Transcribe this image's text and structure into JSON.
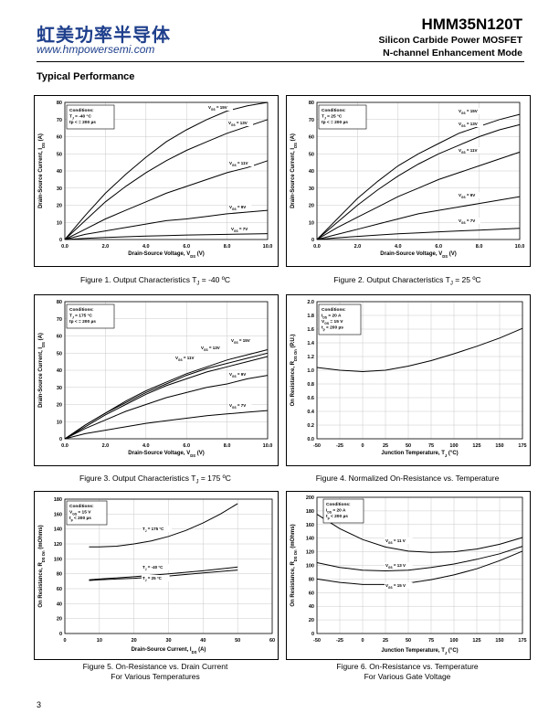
{
  "header": {
    "company_cn": "虹美功率半导体",
    "website": "www.hmpowersemi.com",
    "part_number": "HMM35N120T",
    "subtitle1": "Silicon Carbide Power MOSFET",
    "subtitle2": "N-channel Enhancement Mode"
  },
  "section_title": "Typical Performance",
  "page_number": "3",
  "captions": [
    [
      "Figure 1. Output Characteristics T",
      "J",
      " = -40 ºC"
    ],
    [
      "Figure 2. Output Characteristics T",
      "J",
      " = 25 ºC"
    ],
    [
      "Figure 3. Output Characteristics T",
      "J",
      " = 175 ºC"
    ],
    [
      "Figure 4. Normalized On-Resistance vs. Temperature"
    ],
    [
      "Figure 5. On-Resistance vs. Drain Current",
      "For Various Temperatures"
    ],
    [
      "Figure 6. On-Resistance vs. Temperature",
      "For Various Gate Voltage"
    ]
  ],
  "chart_data": [
    {
      "type": "line",
      "xlabel": "Drain-Source Voltage, V_DS (V)",
      "ylabel": "Drain-Source Current, I_DS (A)",
      "xlim": [
        0,
        10
      ],
      "ylim": [
        0,
        80
      ],
      "xticks": [
        "0.0",
        "2.0",
        "4.0",
        "6.0",
        "8.0",
        "10.0"
      ],
      "yticks": [
        "0",
        "10",
        "20",
        "30",
        "40",
        "50",
        "60",
        "70",
        "80"
      ],
      "conditions": [
        "Conditions:",
        "T_J = -40 °C",
        "tp < = 200 µs"
      ],
      "grid": true,
      "series": [
        {
          "name": "V_GS = 15V",
          "x": [
            0,
            1,
            2,
            3,
            4,
            5,
            6,
            7,
            8,
            9,
            10
          ],
          "y": [
            0,
            14,
            27,
            38,
            48,
            57,
            64,
            70,
            75,
            78,
            80
          ]
        },
        {
          "name": "V_GS = 13V",
          "x": [
            0,
            1,
            2,
            3,
            4,
            5,
            6,
            7,
            8,
            9,
            10
          ],
          "y": [
            0,
            11,
            22,
            31,
            39,
            46,
            52,
            57,
            62,
            66,
            70
          ]
        },
        {
          "name": "V_GS = 11V",
          "x": [
            0,
            1,
            2,
            3,
            4,
            5,
            6,
            7,
            8,
            9,
            10
          ],
          "y": [
            0,
            6,
            12,
            17,
            22,
            27,
            31,
            35,
            39,
            42,
            46
          ]
        },
        {
          "name": "V_GS = 9V",
          "x": [
            0,
            1,
            2,
            3,
            4,
            5,
            6,
            7,
            8,
            9,
            10
          ],
          "y": [
            0,
            3,
            5,
            7,
            9,
            11,
            12,
            13.5,
            15,
            16,
            17
          ]
        },
        {
          "name": "V_GS = 7V",
          "x": [
            0,
            1,
            2,
            3,
            4,
            5,
            6,
            7,
            8,
            9,
            10
          ],
          "y": [
            0,
            0.7,
            1.2,
            1.6,
            2,
            2.3,
            2.6,
            2.8,
            3,
            3.2,
            3.4
          ]
        }
      ]
    },
    {
      "type": "line",
      "xlabel": "Drain-Source Voltage, V_DS (V)",
      "ylabel": "Drain-Source Current, I_DS (A)",
      "xlim": [
        0,
        10
      ],
      "ylim": [
        0,
        80
      ],
      "xticks": [
        "0.0",
        "2.0",
        "4.0",
        "6.0",
        "8.0",
        "10.0"
      ],
      "yticks": [
        "0",
        "10",
        "20",
        "30",
        "40",
        "50",
        "60",
        "70",
        "80"
      ],
      "conditions": [
        "Conditions:",
        "T_J = 25 °C",
        "tp < = 200 µs"
      ],
      "grid": true,
      "series": [
        {
          "name": "V_GS = 15V",
          "x": [
            0,
            1,
            2,
            3,
            4,
            5,
            6,
            7,
            8,
            9,
            10
          ],
          "y": [
            0,
            12,
            24,
            34,
            43,
            50,
            56,
            62,
            66,
            70,
            73
          ]
        },
        {
          "name": "V_GS = 13V",
          "x": [
            0,
            1,
            2,
            3,
            4,
            5,
            6,
            7,
            8,
            9,
            10
          ],
          "y": [
            0,
            10,
            20,
            29,
            37,
            44,
            50,
            55,
            60,
            64,
            67
          ]
        },
        {
          "name": "V_GS = 11V",
          "x": [
            0,
            1,
            2,
            3,
            4,
            5,
            6,
            7,
            8,
            9,
            10
          ],
          "y": [
            0,
            7,
            13,
            19,
            25,
            30,
            35,
            39,
            43,
            47,
            51
          ]
        },
        {
          "name": "V_GS = 9V",
          "x": [
            0,
            1,
            2,
            3,
            4,
            5,
            6,
            7,
            8,
            9,
            10
          ],
          "y": [
            0,
            3,
            6,
            9,
            12,
            15,
            17,
            19,
            21,
            23,
            25
          ]
        },
        {
          "name": "V_GS = 7V",
          "x": [
            0,
            1,
            2,
            3,
            4,
            5,
            6,
            7,
            8,
            9,
            10
          ],
          "y": [
            0,
            1,
            1.8,
            2.6,
            3.3,
            3.9,
            4.5,
            5,
            5.5,
            6,
            6.5
          ]
        }
      ]
    },
    {
      "type": "line",
      "xlabel": "Drain-Source Voltage, V_DS (V)",
      "ylabel": "Drain-Source Current, I_DS (A)",
      "xlim": [
        0,
        10
      ],
      "ylim": [
        0,
        80
      ],
      "xticks": [
        "0.0",
        "2.0",
        "4.0",
        "6.0",
        "8.0",
        "10.0"
      ],
      "yticks": [
        "0",
        "10",
        "20",
        "30",
        "40",
        "50",
        "60",
        "70",
        "80"
      ],
      "conditions": [
        "Conditions:",
        "T_J = 175 °C",
        "tp < = 200 µs"
      ],
      "grid": true,
      "series": [
        {
          "name": "V_GS = 15V",
          "x": [
            0,
            1,
            2,
            3,
            4,
            5,
            6,
            7,
            8,
            9,
            10
          ],
          "y": [
            0,
            8,
            15,
            22,
            28,
            33,
            38,
            42,
            46,
            49,
            52
          ]
        },
        {
          "name": "V_GS = 13V",
          "x": [
            0,
            1,
            2,
            3,
            4,
            5,
            6,
            7,
            8,
            9,
            10
          ],
          "y": [
            0,
            8,
            15,
            21,
            27,
            32,
            37,
            41,
            44,
            47,
            50
          ]
        },
        {
          "name": "V_GS = 11V",
          "x": [
            0,
            1,
            2,
            3,
            4,
            5,
            6,
            7,
            8,
            9,
            10
          ],
          "y": [
            0,
            7,
            14,
            20,
            26,
            31,
            35,
            39,
            42,
            45,
            48
          ]
        },
        {
          "name": "V_GS = 9V",
          "x": [
            0,
            1,
            2,
            3,
            4,
            5,
            6,
            7,
            8,
            9,
            10
          ],
          "y": [
            0,
            6,
            11,
            16,
            20,
            24,
            27,
            30,
            32,
            35,
            37
          ]
        },
        {
          "name": "V_GS = 7V",
          "x": [
            0,
            1,
            2,
            3,
            4,
            5,
            6,
            7,
            8,
            9,
            10
          ],
          "y": [
            0,
            3,
            5,
            7,
            9,
            10.5,
            12,
            13.5,
            14.5,
            15.5,
            16.5
          ]
        }
      ]
    },
    {
      "type": "line",
      "xlabel": "Junction Temperature, T_J (°C)",
      "ylabel": "On Resistance, R_DS On (P.U.)",
      "xlim": [
        -50,
        175
      ],
      "ylim": [
        0,
        2.0
      ],
      "xticks": [
        "-50",
        "-25",
        "0",
        "25",
        "50",
        "75",
        "100",
        "125",
        "150",
        "175"
      ],
      "yticks": [
        "0.0",
        "0.2",
        "0.4",
        "0.6",
        "0.8",
        "1.0",
        "1.2",
        "1.4",
        "1.6",
        "1.8",
        "2.0"
      ],
      "conditions": [
        "Conditions:",
        "I_DS = 20 A",
        "V_GS = 15 V",
        "t_p < 200 µs"
      ],
      "grid": true,
      "series": [
        {
          "x": [
            -50,
            -25,
            0,
            25,
            50,
            75,
            100,
            125,
            150,
            175
          ],
          "y": [
            1.04,
            1.0,
            0.98,
            1.0,
            1.06,
            1.14,
            1.24,
            1.35,
            1.47,
            1.61
          ]
        }
      ]
    },
    {
      "type": "line",
      "xlabel": "Drain-Source Current, I_DS (A)",
      "ylabel": "On Resistance, R_DS On (mOhms)",
      "xlim": [
        0,
        60
      ],
      "ylim": [
        0,
        180
      ],
      "xticks": [
        "0",
        "10",
        "20",
        "30",
        "40",
        "50",
        "60"
      ],
      "yticks": [
        "0",
        "20",
        "40",
        "60",
        "80",
        "100",
        "120",
        "140",
        "160",
        "180"
      ],
      "conditions": [
        "Conditions:",
        "V_GS = 15 V",
        "t_p < 200 µs"
      ],
      "grid": true,
      "series": [
        {
          "name": "T_J = 175 °C",
          "x": [
            7,
            10,
            15,
            20,
            25,
            30,
            35,
            40,
            45,
            50
          ],
          "y": [
            116,
            116,
            117,
            120,
            124,
            130,
            138,
            148,
            160,
            174
          ]
        },
        {
          "name": "T_J = -40 °C",
          "x": [
            7,
            10,
            20,
            30,
            40,
            50
          ],
          "y": [
            72,
            73,
            76,
            80,
            84,
            89
          ]
        },
        {
          "name": "T_J = 25 °C",
          "x": [
            7,
            10,
            20,
            30,
            40,
            50
          ],
          "y": [
            71,
            72,
            74,
            77,
            81,
            85
          ]
        }
      ]
    },
    {
      "type": "line",
      "xlabel": "Junction Temperature, T_J (°C)",
      "ylabel": "On Resistance, R_DS On (mOhms)",
      "xlim": [
        -50,
        175
      ],
      "ylim": [
        0,
        200
      ],
      "xticks": [
        "-50",
        "-25",
        "0",
        "25",
        "50",
        "75",
        "100",
        "125",
        "150",
        "175"
      ],
      "yticks": [
        "0",
        "20",
        "40",
        "60",
        "80",
        "100",
        "120",
        "140",
        "160",
        "180",
        "200"
      ],
      "conditions": [
        "Conditions:",
        "I_DS = 20 A",
        "t_p < 200 µs"
      ],
      "grid": true,
      "series": [
        {
          "name": "V_GS = 11 V",
          "x": [
            -50,
            -25,
            0,
            25,
            50,
            75,
            100,
            125,
            150,
            175
          ],
          "y": [
            175,
            154,
            138,
            127,
            121,
            119,
            120,
            124,
            131,
            141
          ]
        },
        {
          "name": "V_GS = 13 V",
          "x": [
            -50,
            -25,
            0,
            25,
            50,
            75,
            100,
            125,
            150,
            175
          ],
          "y": [
            104,
            97,
            93,
            92,
            93,
            97,
            102,
            109,
            117,
            128
          ]
        },
        {
          "name": "V_GS = 15 V",
          "x": [
            -50,
            -25,
            0,
            25,
            50,
            75,
            100,
            125,
            150,
            175
          ],
          "y": [
            80,
            75,
            72,
            72,
            74,
            79,
            86,
            95,
            107,
            121
          ]
        }
      ]
    }
  ]
}
